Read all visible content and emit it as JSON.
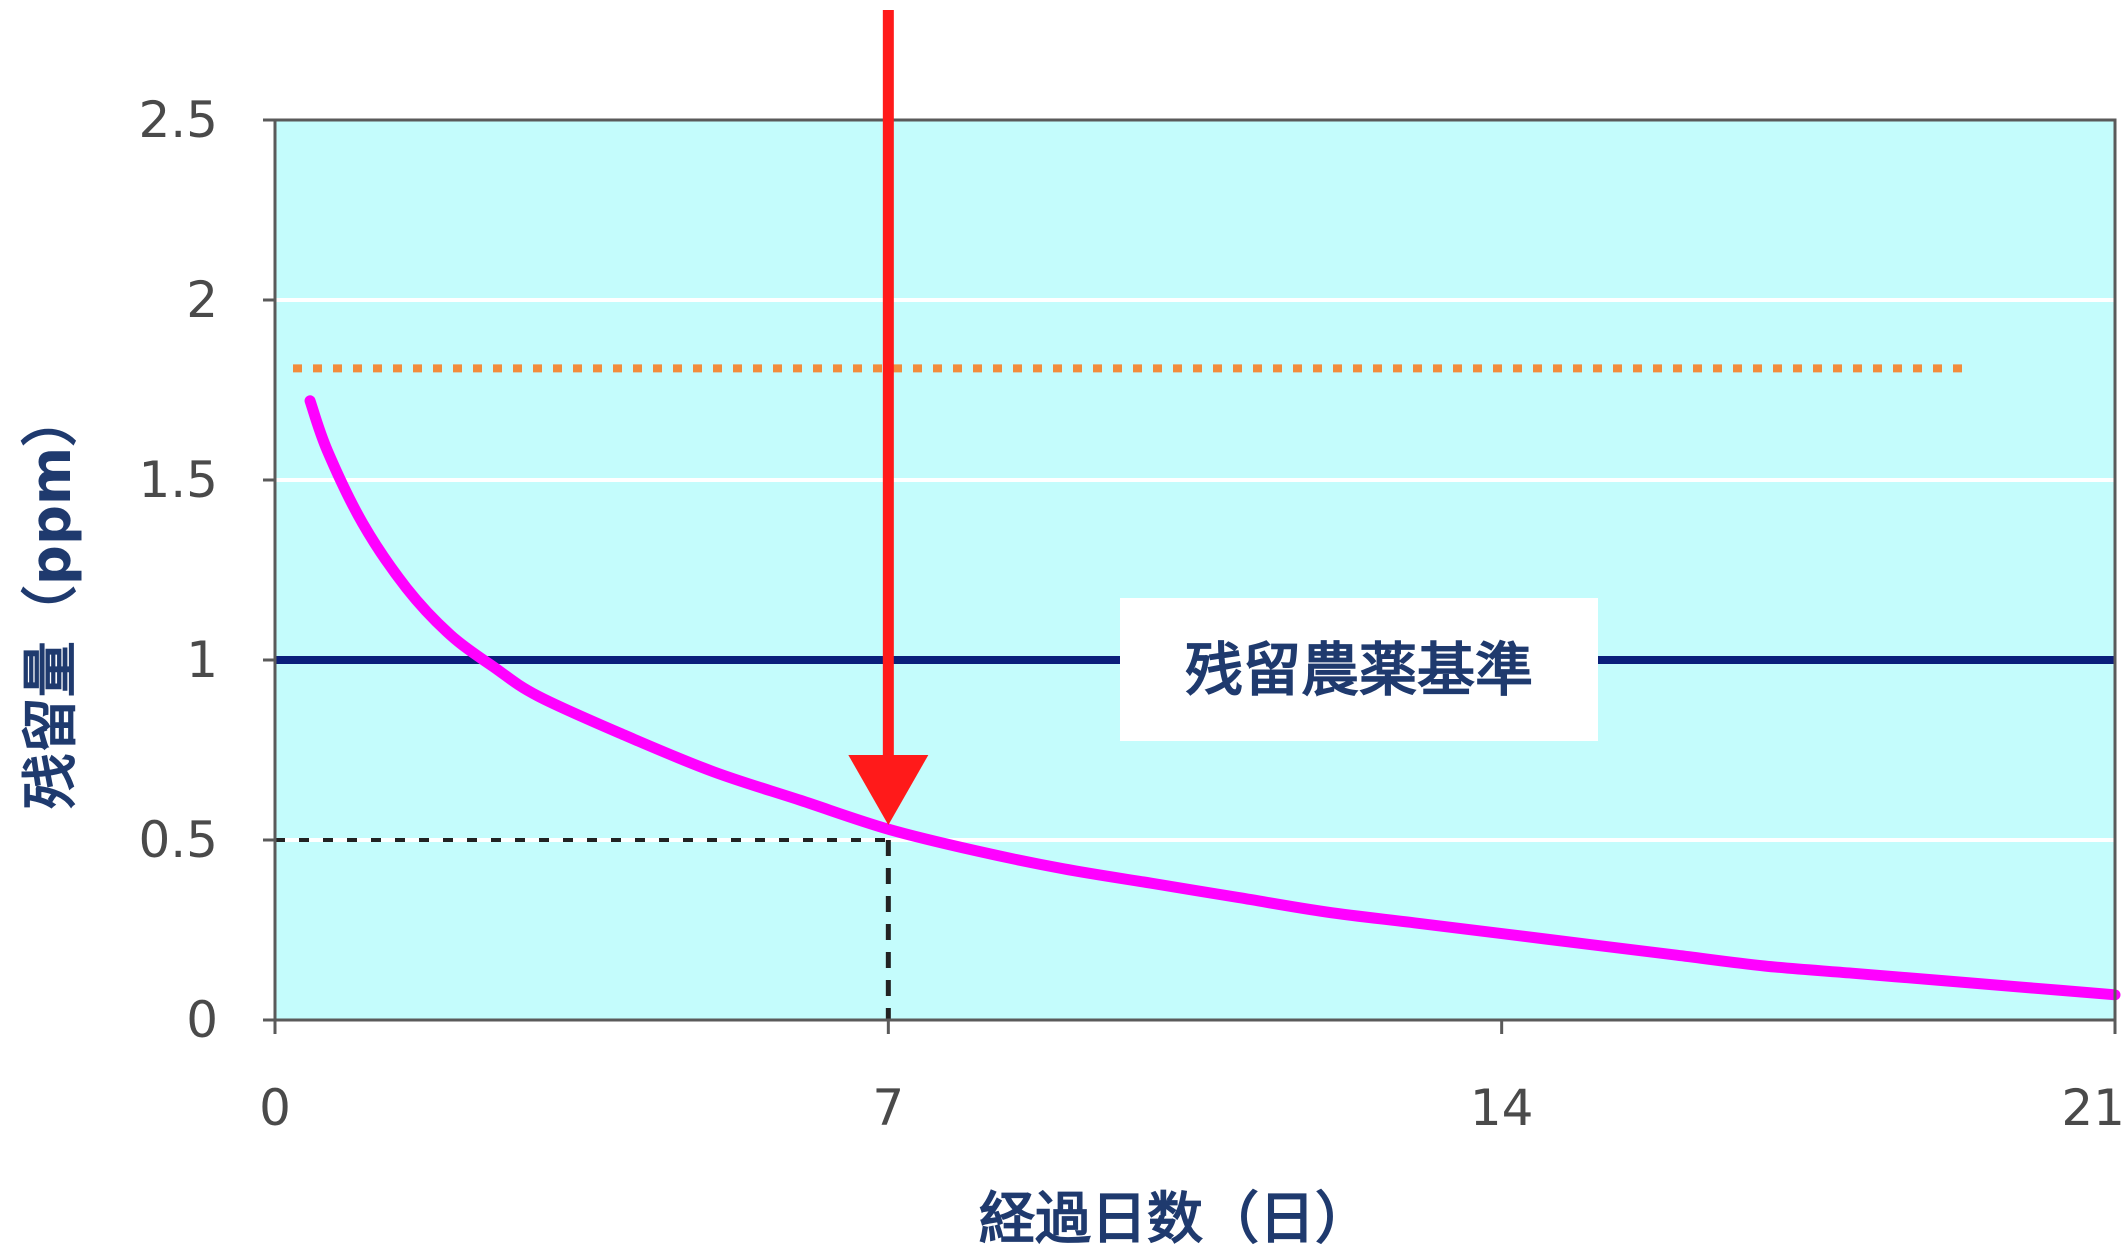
{
  "chart_data": {
    "type": "line",
    "xlabel": "経過日数（日）",
    "ylabel": "残留量（ppm）",
    "xlim": [
      0,
      21
    ],
    "ylim": [
      0,
      2.5
    ],
    "x_ticks": [
      "0",
      "7",
      "14",
      "21"
    ],
    "y_ticks": [
      "0",
      "0.5",
      "1",
      "1.5",
      "2",
      "2.5"
    ],
    "grid": "horizontal",
    "plot_background": "#c4fcfc",
    "series": [
      {
        "color": "#ff00ff",
        "x": [
          0.4,
          0.6,
          1,
          1.5,
          2,
          2.5,
          3,
          4,
          5,
          6,
          7,
          8,
          9,
          10,
          11,
          12,
          13,
          14,
          15,
          16,
          17,
          18,
          19,
          20,
          21
        ],
        "y": [
          1.72,
          1.58,
          1.38,
          1.2,
          1.07,
          0.98,
          0.9,
          0.79,
          0.69,
          0.61,
          0.53,
          0.47,
          0.42,
          0.38,
          0.34,
          0.3,
          0.27,
          0.24,
          0.21,
          0.18,
          0.15,
          0.13,
          0.11,
          0.09,
          0.07
        ]
      }
    ],
    "reference_lines": [
      {
        "name": "残留農薬基準",
        "y": 1.0,
        "color": "#0a1f7a",
        "style": "solid"
      },
      {
        "y": 1.81,
        "x_end": 19.3,
        "color": "#f28c3c",
        "style": "dotted"
      }
    ],
    "annotations": {
      "label": "残留農薬基準",
      "arrow_x": 7,
      "arrow_color": "#ff1a1a",
      "marker_x": 7,
      "marker_y": 0.5
    }
  }
}
